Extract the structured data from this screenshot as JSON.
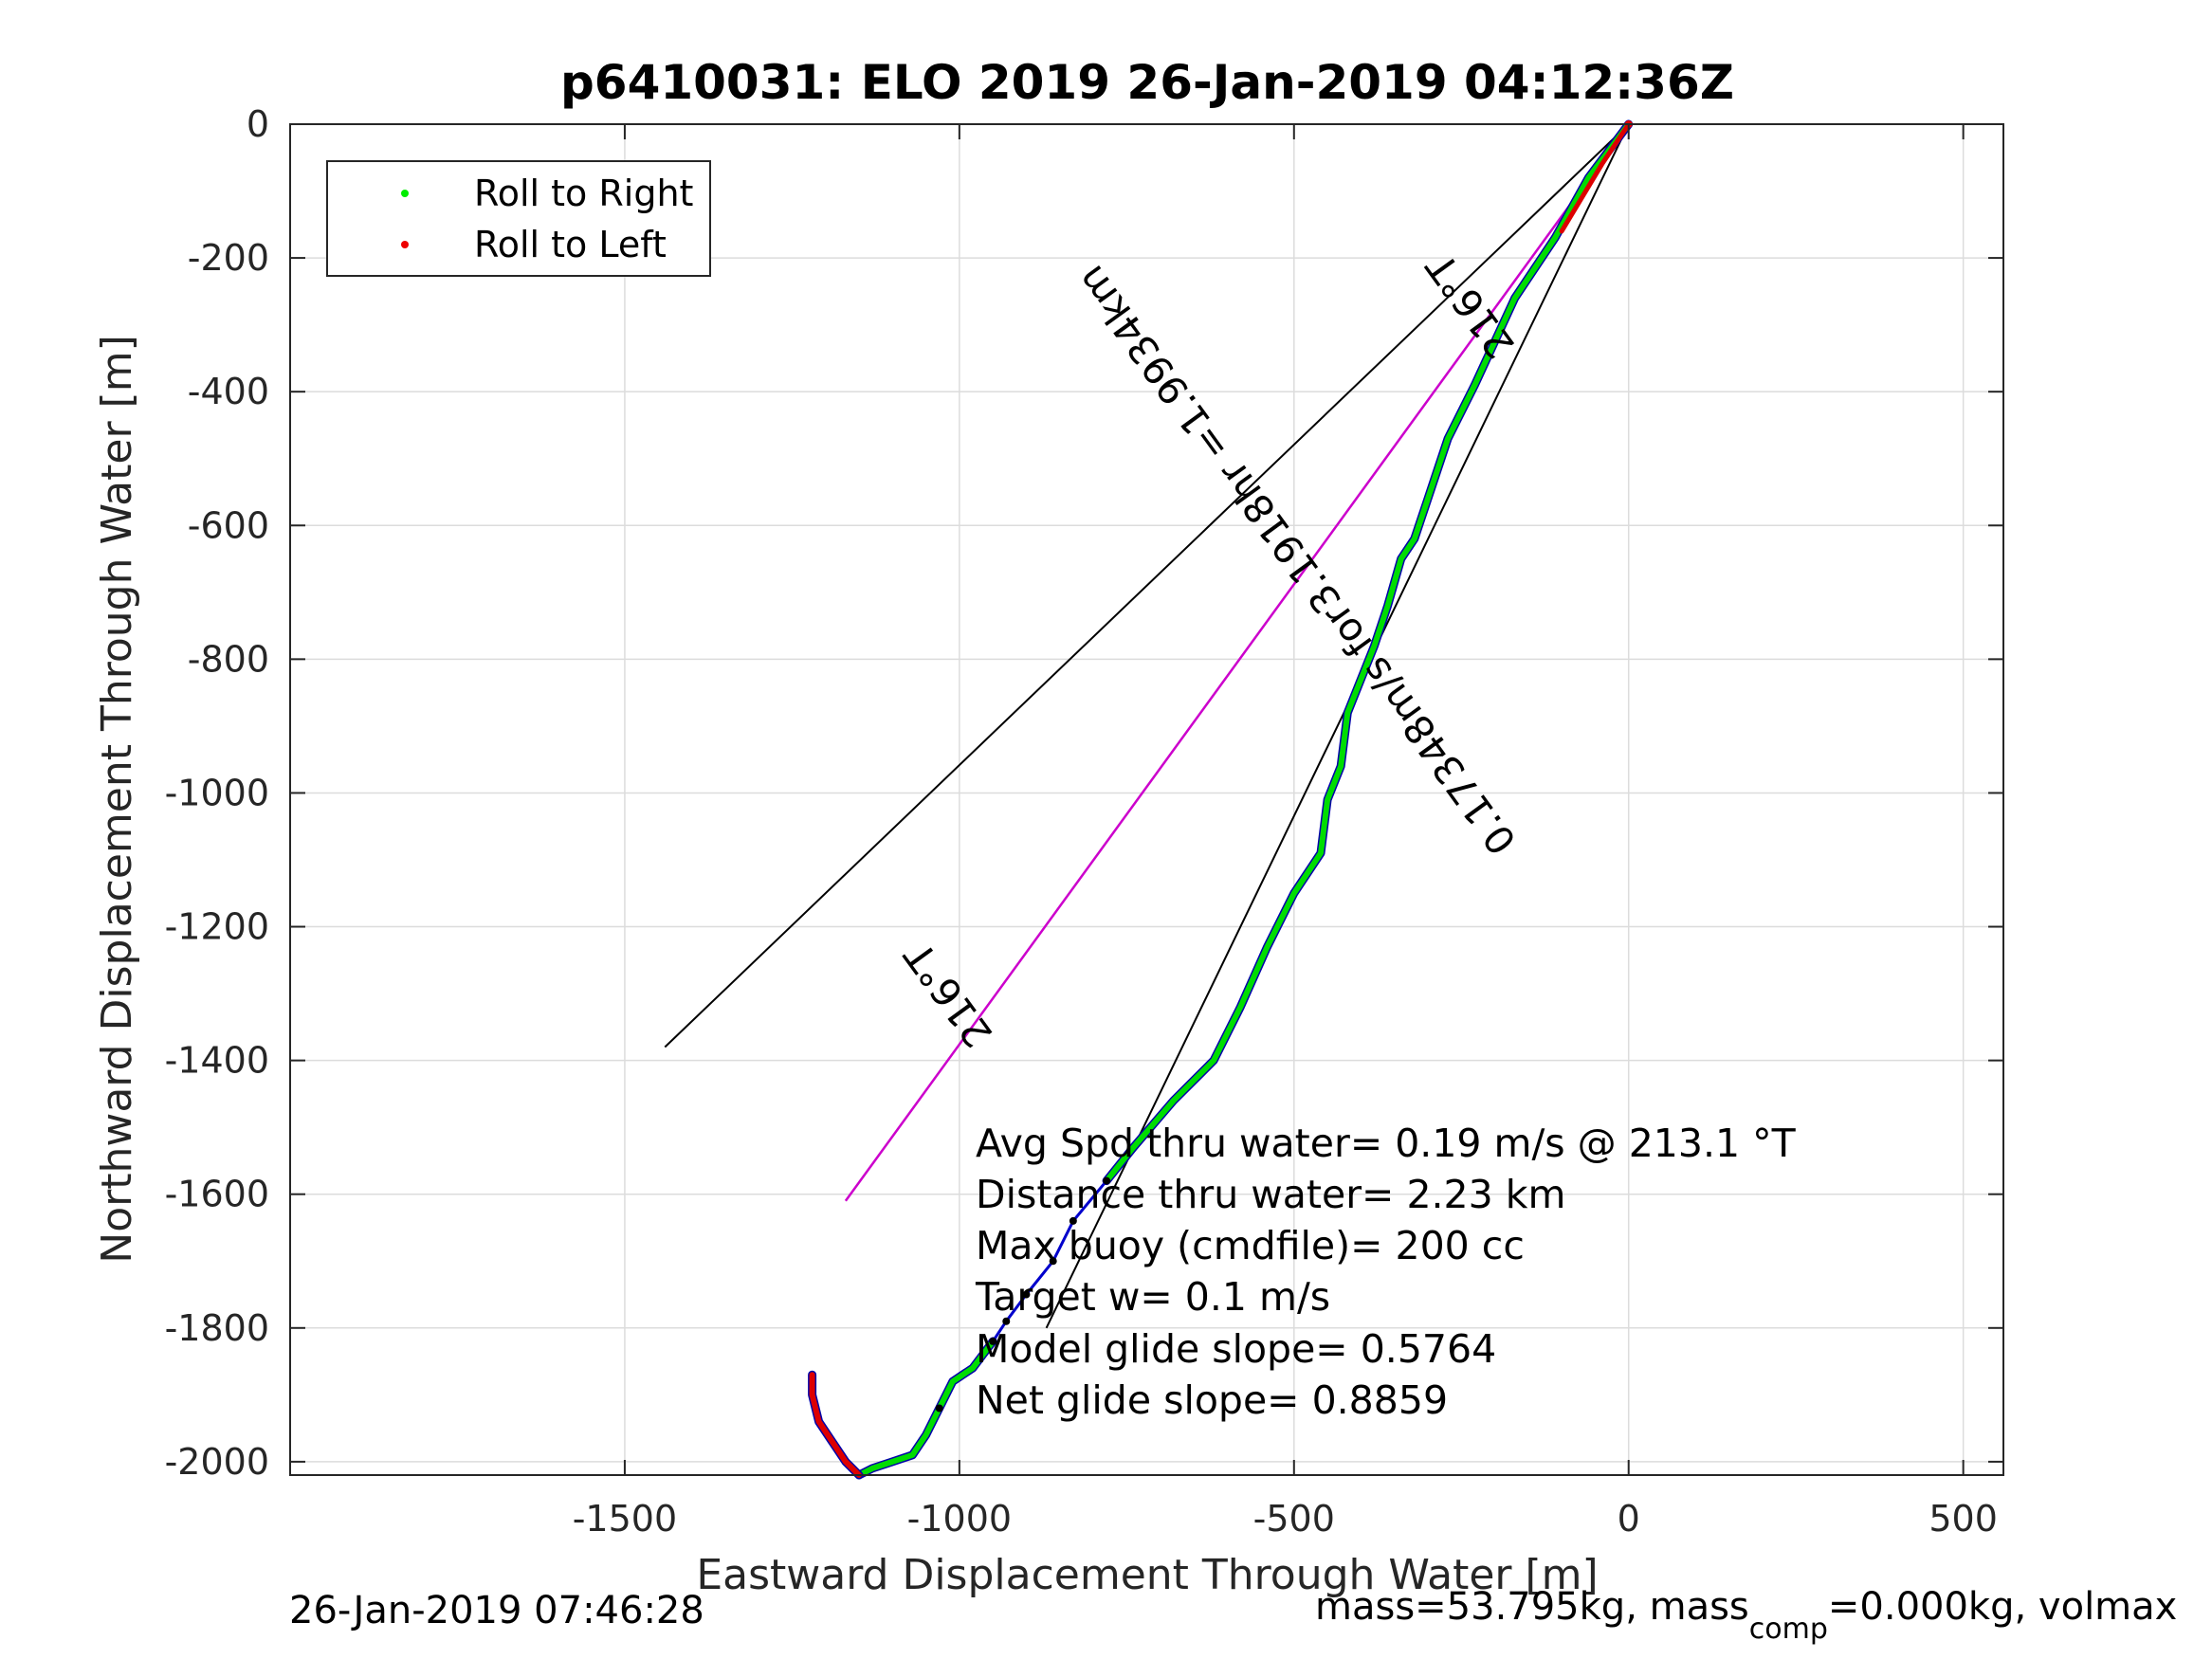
{
  "chart_data": {
    "type": "line",
    "title": "p6410031: ELO 2019 26-Jan-2019 04:12:36Z",
    "xlabel": "Eastward Displacement Through Water [m]",
    "ylabel": "Northward Displacement Through Water [m]",
    "xlim": [
      -2000,
      560
    ],
    "ylim": [
      -2020,
      0
    ],
    "xticks": [
      -1500,
      -1000,
      -500,
      0,
      500
    ],
    "yticks": [
      0,
      -200,
      -400,
      -600,
      -800,
      -1000,
      -1200,
      -1400,
      -1600,
      -1800,
      -2000
    ],
    "xtick_labels": [
      "-1500",
      "-1000",
      "-500",
      "0",
      "500"
    ],
    "ytick_labels": [
      "0",
      "-200",
      "-400",
      "-600",
      "-800",
      "-1000",
      "-1200",
      "-1400",
      "-1600",
      "-1800",
      "-2000"
    ],
    "grid": true,
    "legend": {
      "placement": "top-left",
      "entries": [
        {
          "label": "Roll to Right",
          "color": "#00ee00"
        },
        {
          "label": "Roll to Left",
          "color": "#ee0000"
        }
      ]
    },
    "track": {
      "green_segment": [
        [
          0,
          0
        ],
        [
          -60,
          -80
        ],
        [
          -110,
          -170
        ],
        [
          -170,
          -260
        ],
        [
          -230,
          -390
        ],
        [
          -270,
          -470
        ],
        [
          -300,
          -560
        ],
        [
          -320,
          -620
        ],
        [
          -340,
          -650
        ],
        [
          -360,
          -720
        ],
        [
          -380,
          -780
        ],
        [
          -400,
          -830
        ],
        [
          -420,
          -880
        ],
        [
          -430,
          -960
        ],
        [
          -450,
          -1010
        ],
        [
          -460,
          -1090
        ],
        [
          -500,
          -1150
        ],
        [
          -540,
          -1230
        ],
        [
          -580,
          -1320
        ],
        [
          -620,
          -1400
        ],
        [
          -680,
          -1460
        ],
        [
          -740,
          -1530
        ],
        [
          -780,
          -1580
        ]
      ],
      "blue_segment": [
        [
          -780,
          -1580
        ],
        [
          -830,
          -1640
        ],
        [
          -860,
          -1700
        ],
        [
          -900,
          -1750
        ],
        [
          -930,
          -1790
        ],
        [
          -950,
          -1820
        ]
      ],
      "green_lower": [
        [
          -950,
          -1820
        ],
        [
          -980,
          -1860
        ],
        [
          -1010,
          -1880
        ],
        [
          -1030,
          -1920
        ],
        [
          -1050,
          -1960
        ],
        [
          -1070,
          -1990
        ],
        [
          -1100,
          -2000
        ],
        [
          -1130,
          -2010
        ],
        [
          -1150,
          -2020
        ]
      ],
      "red_tail": [
        [
          -1150,
          -2020
        ],
        [
          -1170,
          -2000
        ],
        [
          -1190,
          -1970
        ],
        [
          -1210,
          -1940
        ],
        [
          -1220,
          -1900
        ],
        [
          -1220,
          -1870
        ]
      ],
      "red_top": [
        [
          0,
          0
        ],
        [
          -40,
          -60
        ],
        [
          -70,
          -110
        ],
        [
          -100,
          -160
        ]
      ]
    },
    "current_line": {
      "from": [
        0,
        0
      ],
      "to": [
        -1170,
        -1610
      ],
      "color": "#cc00cc"
    },
    "heading_lines": [
      {
        "from": [
          0,
          0
        ],
        "to": [
          -1440,
          -1380
        ]
      },
      {
        "from": [
          0,
          0
        ],
        "to": [
          -870,
          -1800
        ]
      }
    ],
    "rotated_annotations": [
      {
        "text": "216°T",
        "x": -1000,
        "y": -1290,
        "angle": 234
      },
      {
        "text": "216°T",
        "x": -220,
        "y": -260,
        "angle": 234
      },
      {
        "text": "0.17348m/s for3.1918hr =1.9934km",
        "x": -480,
        "y": -640,
        "angle": 234
      }
    ],
    "stats": [
      "Avg Spd thru water=  0.19 m/s @ 213.1 °T",
      "Distance thru water=  2.23 km",
      "Max buoy (cmdfile)= 200 cc",
      "Target w= 0.1 m/s",
      "Model glide slope= 0.5764",
      "Net glide slope= 0.8859"
    ]
  },
  "footer": {
    "left": "26-Jan-2019 07:46:28",
    "right_prefix": "mass=53.795kg, mass",
    "right_sub": "comp",
    "right_suffix": "=0.000kg, volmax"
  }
}
